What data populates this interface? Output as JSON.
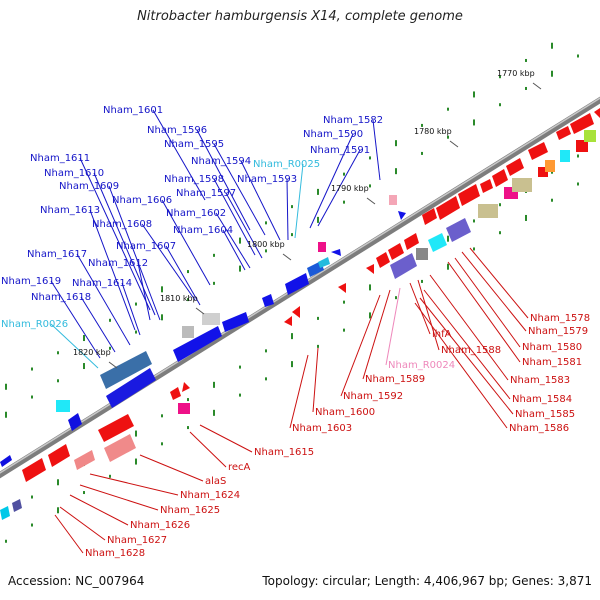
{
  "title": "Nitrobacter hamburgensis X14, complete genome",
  "footer": {
    "accession": "Accession: NC_007964",
    "summary": "Topology: circular; Length: 4,406,967 bp; Genes: 3,871"
  },
  "colors": {
    "forward_label": "#1515c8",
    "reverse_label": "#cc1111",
    "rna_forward_label": "#33bbdd",
    "rna_reverse_label": "#ee88bb",
    "backbone": "#8c8c8c"
  },
  "ticks": [
    {
      "text": "1770 kbp"
    },
    {
      "text": "1780 kbp"
    },
    {
      "text": "1790 kbp"
    },
    {
      "text": "1800 kbp"
    },
    {
      "text": "1810 kbp"
    },
    {
      "text": "1820 kbp"
    }
  ],
  "forward_labels": [
    {
      "text": "Nham_1601"
    },
    {
      "text": "Nham_1596"
    },
    {
      "text": "Nham_1595"
    },
    {
      "text": "Nham_1594"
    },
    {
      "text": "Nham_R0025"
    },
    {
      "text": "Nham_1598"
    },
    {
      "text": "Nham_1593"
    },
    {
      "text": "Nham_1597"
    },
    {
      "text": "Nham_1602"
    },
    {
      "text": "Nham_1604"
    },
    {
      "text": "Nham_1611"
    },
    {
      "text": "Nham_1610"
    },
    {
      "text": "Nham_1609"
    },
    {
      "text": "Nham_1606"
    },
    {
      "text": "Nham_1613"
    },
    {
      "text": "Nham_1608"
    },
    {
      "text": "Nham_1607"
    },
    {
      "text": "Nham_1617"
    },
    {
      "text": "Nham_1612"
    },
    {
      "text": "Nham_1614"
    },
    {
      "text": "Nham_1619"
    },
    {
      "text": "Nham_1618"
    },
    {
      "text": "Nham_R0026"
    },
    {
      "text": "Nham_1582"
    },
    {
      "text": "Nham_1590"
    },
    {
      "text": "Nham_1591"
    }
  ],
  "reverse_labels": [
    {
      "text": "Nham_1578"
    },
    {
      "text": "Nham_1579"
    },
    {
      "text": "Nham_1580"
    },
    {
      "text": "Nham_1581"
    },
    {
      "text": "ihfA"
    },
    {
      "text": "Nham_1588"
    },
    {
      "text": "Nham_R0024"
    },
    {
      "text": "Nham_1583"
    },
    {
      "text": "Nham_1589"
    },
    {
      "text": "Nham_1584"
    },
    {
      "text": "Nham_1592"
    },
    {
      "text": "Nham_1585"
    },
    {
      "text": "Nham_1600"
    },
    {
      "text": "Nham_1586"
    },
    {
      "text": "Nham_1603"
    },
    {
      "text": "Nham_1615"
    },
    {
      "text": "recA"
    },
    {
      "text": "alaS"
    },
    {
      "text": "Nham_1624"
    },
    {
      "text": "Nham_1625"
    },
    {
      "text": "Nham_1626"
    },
    {
      "text": "Nham_1627"
    },
    {
      "text": "Nham_1628"
    }
  ]
}
